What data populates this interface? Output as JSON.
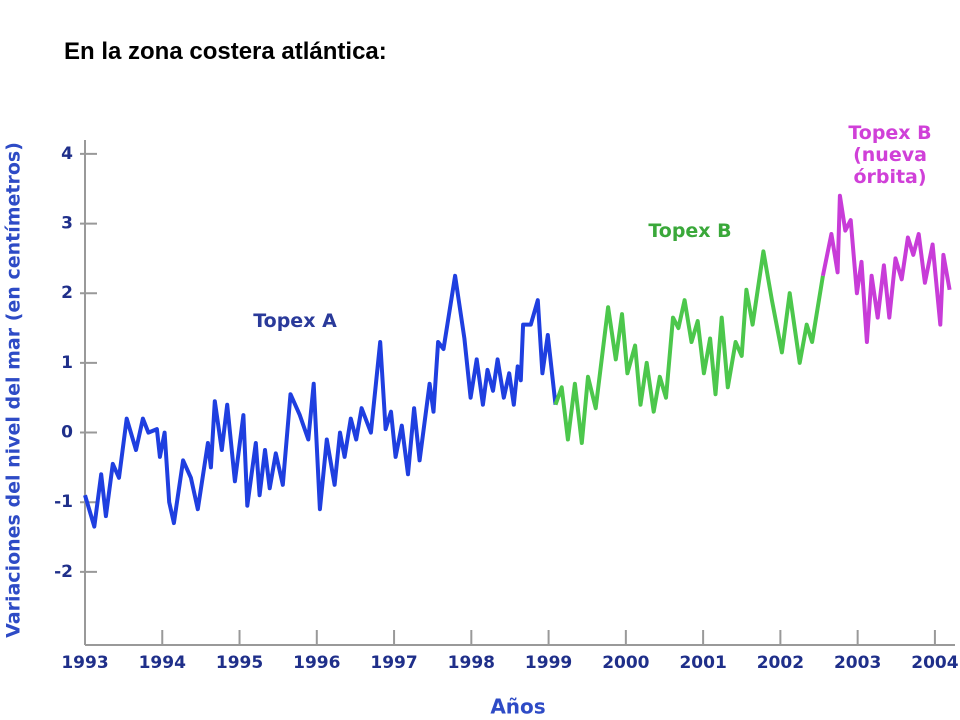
{
  "chart_data": {
    "type": "line",
    "title": "En la zona costera atlántica:",
    "ylabel": "Variaciones del nivel del mar (en centímetros)",
    "xlabel": "Años",
    "xlim": [
      1993,
      2004.26
    ],
    "ylim": [
      -3.05,
      4.2
    ],
    "xticks": [
      1993,
      1994,
      1995,
      1996,
      1997,
      1998,
      1999,
      2000,
      2001,
      2002,
      2003,
      2004
    ],
    "yticks": [
      4,
      3,
      2,
      1,
      0,
      -1,
      -2
    ],
    "series": [
      {
        "name": "Topex A",
        "color": "#1f3fe0",
        "x": [
          1993.0,
          1993.12,
          1993.21,
          1993.27,
          1993.36,
          1993.44,
          1993.54,
          1993.66,
          1993.75,
          1993.82,
          1993.93,
          1993.97,
          1994.03,
          1994.09,
          1994.15,
          1994.27,
          1994.37,
          1994.46,
          1994.59,
          1994.63,
          1994.68,
          1994.77,
          1994.84,
          1994.94,
          1995.05,
          1995.1,
          1995.21,
          1995.26,
          1995.33,
          1995.39,
          1995.47,
          1995.56,
          1995.66,
          1995.78,
          1995.89,
          1995.96,
          1996.04,
          1996.13,
          1996.23,
          1996.3,
          1996.36,
          1996.44,
          1996.51,
          1996.58,
          1996.7,
          1996.82,
          1996.89,
          1996.96,
          1997.02,
          1997.1,
          1997.18,
          1997.26,
          1997.33,
          1997.46,
          1997.51,
          1997.57,
          1997.64,
          1997.79,
          1997.91,
          1997.99,
          1998.07,
          1998.15,
          1998.21,
          1998.28,
          1998.34,
          1998.42,
          1998.49,
          1998.55,
          1998.6,
          1998.64,
          1998.67,
          1998.77,
          1998.86,
          1998.92,
          1998.99,
          1999.09
        ],
        "values": [
          -0.9,
          -1.35,
          -0.6,
          -1.2,
          -0.45,
          -0.65,
          0.2,
          -0.25,
          0.2,
          0,
          0.05,
          -0.35,
          0,
          -1.0,
          -1.3,
          -0.4,
          -0.65,
          -1.1,
          -0.15,
          -0.5,
          0.45,
          -0.25,
          0.4,
          -0.7,
          0.25,
          -1.05,
          -0.15,
          -0.9,
          -0.25,
          -0.8,
          -0.3,
          -0.75,
          0.55,
          0.25,
          -0.1,
          0.7,
          -1.1,
          -0.1,
          -0.75,
          0,
          -0.35,
          0.2,
          -0.1,
          0.35,
          0,
          1.3,
          0.05,
          0.3,
          -0.35,
          0.1,
          -0.6,
          0.35,
          -0.4,
          0.7,
          0.3,
          1.3,
          1.2,
          2.25,
          1.35,
          0.5,
          1.05,
          0.4,
          0.9,
          0.6,
          1.05,
          0.5,
          0.85,
          0.4,
          0.95,
          0.75,
          1.55,
          1.55,
          1.9,
          0.85,
          1.4,
          0.4
        ]
      },
      {
        "name": "Topex B",
        "color": "#4cc74c",
        "x": [
          1999.09,
          1999.17,
          1999.25,
          1999.34,
          1999.43,
          1999.51,
          1999.61,
          1999.77,
          1999.87,
          1999.95,
          2000.02,
          2000.12,
          2000.19,
          2000.27,
          2000.36,
          2000.44,
          2000.52,
          2000.61,
          2000.68,
          2000.76,
          2000.85,
          2000.93,
          2001.01,
          2001.09,
          2001.16,
          2001.24,
          2001.32,
          2001.42,
          2001.5,
          2001.56,
          2001.64,
          2001.78,
          2001.89,
          2002.02,
          2002.12,
          2002.25,
          2002.34,
          2002.41,
          2002.55
        ],
        "values": [
          0.4,
          0.65,
          -0.1,
          0.7,
          -0.15,
          0.8,
          0.35,
          1.8,
          1.05,
          1.7,
          0.85,
          1.25,
          0.4,
          1.0,
          0.3,
          0.8,
          0.5,
          1.65,
          1.5,
          1.9,
          1.3,
          1.6,
          0.85,
          1.35,
          0.55,
          1.65,
          0.65,
          1.3,
          1.1,
          2.05,
          1.55,
          2.6,
          1.9,
          1.15,
          2.0,
          1.0,
          1.55,
          1.3,
          2.25
        ]
      },
      {
        "name": "Topex B (nueva órbita)",
        "color": "#c83cd8",
        "x": [
          2002.55,
          2002.66,
          2002.74,
          2002.77,
          2002.84,
          2002.91,
          2002.99,
          2003.05,
          2003.12,
          2003.18,
          2003.26,
          2003.34,
          2003.41,
          2003.49,
          2003.57,
          2003.65,
          2003.72,
          2003.79,
          2003.87,
          2003.97,
          2004.07,
          2004.11,
          2004.19
        ],
        "values": [
          2.25,
          2.85,
          2.3,
          3.4,
          2.9,
          3.05,
          2.0,
          2.45,
          1.3,
          2.25,
          1.65,
          2.4,
          1.65,
          2.5,
          2.2,
          2.8,
          2.55,
          2.85,
          2.15,
          2.7,
          1.55,
          2.55,
          2.05
        ]
      }
    ]
  }
}
